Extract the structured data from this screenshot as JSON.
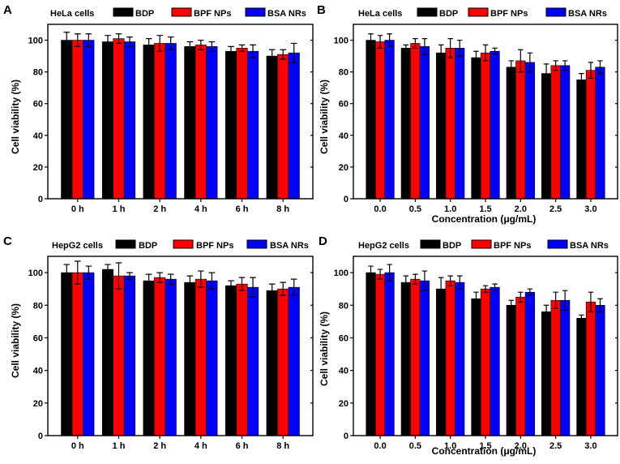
{
  "chart_data": [
    {
      "type": "bar",
      "panel": "A",
      "cell_label": "HeLa cells",
      "ylabel": "Cell viability (%)",
      "xlabel": "",
      "ylim": [
        0,
        110
      ],
      "yticks": [
        0,
        20,
        40,
        60,
        80,
        100
      ],
      "categories": [
        "0 h",
        "1 h",
        "2 h",
        "4 h",
        "6 h",
        "8 h"
      ],
      "series": [
        {
          "name": "BDP",
          "color": "#000000",
          "values": [
            100,
            99,
            97,
            96,
            93,
            90
          ],
          "errors": [
            5,
            4,
            4,
            3,
            3,
            4
          ]
        },
        {
          "name": "BPF NPs",
          "color": "#ff0000",
          "values": [
            100,
            101,
            98,
            97,
            95,
            91
          ],
          "errors": [
            4,
            3,
            5,
            3,
            2,
            3
          ]
        },
        {
          "name": "BSA NRs",
          "color": "#0000ff",
          "values": [
            100,
            99,
            98,
            96,
            93,
            92
          ],
          "errors": [
            4,
            3,
            4,
            3,
            4,
            6
          ]
        }
      ]
    },
    {
      "type": "bar",
      "panel": "B",
      "cell_label": "HeLa cells",
      "ylabel": "Cell viability (%)",
      "xlabel": "Concentration (μg/mL)",
      "ylim": [
        0,
        110
      ],
      "yticks": [
        0,
        20,
        40,
        60,
        80,
        100
      ],
      "categories": [
        "0.0",
        "0.5",
        "1.0",
        "1.5",
        "2.0",
        "2.5",
        "3.0"
      ],
      "series": [
        {
          "name": "BDP",
          "color": "#000000",
          "values": [
            100,
            95,
            92,
            89,
            83,
            79,
            75
          ],
          "errors": [
            4,
            2,
            5,
            4,
            4,
            6,
            4
          ]
        },
        {
          "name": "BPF NPs",
          "color": "#ff0000",
          "values": [
            99,
            98,
            95,
            92,
            87,
            84,
            81
          ],
          "errors": [
            4,
            3,
            6,
            5,
            7,
            3,
            5
          ]
        },
        {
          "name": "BSA NRs",
          "color": "#0000ff",
          "values": [
            100,
            96,
            95,
            93,
            86,
            84,
            83
          ],
          "errors": [
            4,
            5,
            5,
            2,
            6,
            3,
            4
          ]
        }
      ]
    },
    {
      "type": "bar",
      "panel": "C",
      "cell_label": "HepG2 cells",
      "ylabel": "Cell viability (%)",
      "xlabel": "",
      "ylim": [
        0,
        110
      ],
      "yticks": [
        0,
        20,
        40,
        60,
        80,
        100
      ],
      "categories": [
        "0 h",
        "1 h",
        "2 h",
        "4 h",
        "6 h",
        "8 h"
      ],
      "series": [
        {
          "name": "BDP",
          "color": "#000000",
          "values": [
            100,
            102,
            95,
            94,
            92,
            89
          ],
          "errors": [
            5,
            3,
            4,
            4,
            3,
            4
          ]
        },
        {
          "name": "BPF NPs",
          "color": "#ff0000",
          "values": [
            100,
            98,
            97,
            96,
            93,
            90
          ],
          "errors": [
            7,
            8,
            3,
            5,
            4,
            4
          ]
        },
        {
          "name": "BSA NRs",
          "color": "#0000ff",
          "values": [
            100,
            98,
            96,
            95,
            91,
            91
          ],
          "errors": [
            4,
            2,
            3,
            5,
            6,
            5
          ]
        }
      ]
    },
    {
      "type": "bar",
      "panel": "D",
      "cell_label": "HepG2 cells",
      "ylabel": "Cell viability (%)",
      "xlabel": "Concentration (μg/mL)",
      "ylim": [
        0,
        110
      ],
      "yticks": [
        0,
        20,
        40,
        60,
        80,
        100
      ],
      "categories": [
        "0.0",
        "0.5",
        "1.0",
        "1.5",
        "2.0",
        "2.5",
        "3.0"
      ],
      "series": [
        {
          "name": "BDP",
          "color": "#000000",
          "values": [
            100,
            94,
            90,
            84,
            80,
            76,
            72
          ],
          "errors": [
            4,
            4,
            7,
            4,
            3,
            4,
            2
          ]
        },
        {
          "name": "BPF NPs",
          "color": "#ff0000",
          "values": [
            99,
            96,
            95,
            90,
            85,
            83,
            82
          ],
          "errors": [
            3,
            3,
            3,
            2,
            3,
            5,
            6
          ]
        },
        {
          "name": "BSA NRs",
          "color": "#0000ff",
          "values": [
            100,
            95,
            94,
            91,
            88,
            83,
            80
          ],
          "errors": [
            5,
            6,
            4,
            2,
            2,
            6,
            4
          ]
        }
      ]
    }
  ]
}
